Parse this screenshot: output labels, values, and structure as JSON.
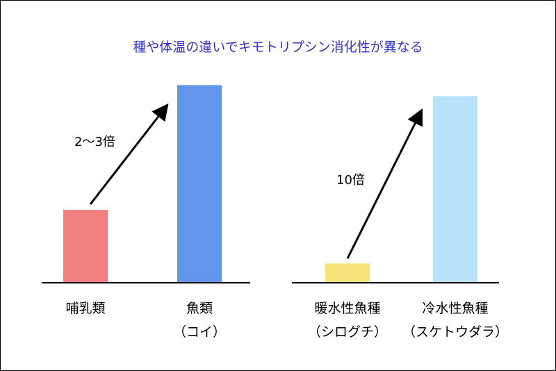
{
  "colors": {
    "title": "#3333cc",
    "axis": "#000000",
    "arrow": "#000000"
  },
  "chart_data": {
    "type": "bar",
    "title": "種や体温の違いでキモトリプシン消化性が異なる",
    "xlabel": "",
    "ylabel": "",
    "ylim": [
      0,
      10
    ],
    "grid": false,
    "groups": [
      {
        "annotation": "2～3倍",
        "bars": [
          {
            "label": "哺乳類",
            "sublabel": "",
            "value": 3.3,
            "color": "#f08080"
          },
          {
            "label": "魚類",
            "sublabel": "（コイ）",
            "value": 9.0,
            "color": "#6495ed"
          }
        ]
      },
      {
        "annotation": "10倍",
        "bars": [
          {
            "label": "暖水性魚種",
            "sublabel": "（シログチ）",
            "value": 0.85,
            "color": "#f5e37a"
          },
          {
            "label": "冷水性魚種",
            "sublabel": "（スケトウダラ）",
            "value": 8.5,
            "color": "#b9e2fa"
          }
        ]
      }
    ]
  }
}
